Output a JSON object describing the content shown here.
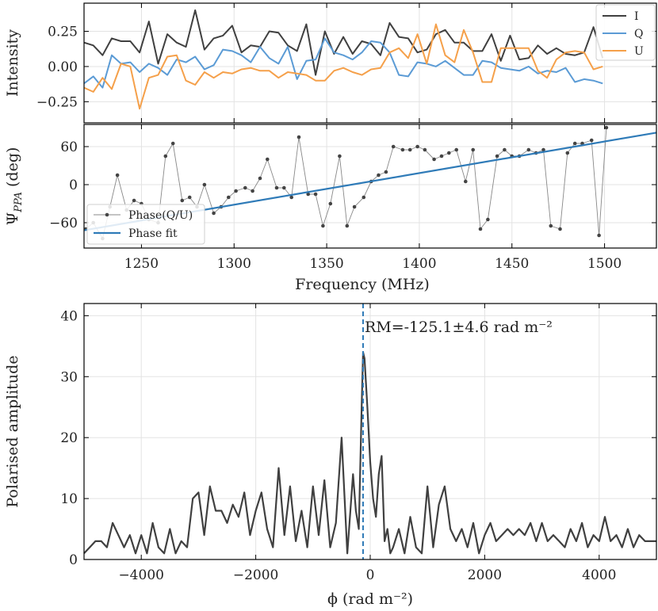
{
  "chart_data": [
    {
      "type": "line",
      "ylabel": "Intensity",
      "xlim": [
        1219,
        1528
      ],
      "ylim": [
        -0.4,
        0.45
      ],
      "yticks": [
        0.25,
        0.0,
        -0.25
      ],
      "ytick_labels": [
        "0.25",
        "0.00",
        "−0.25"
      ],
      "grid": true,
      "legend_position": "top-right",
      "x": [
        1219,
        1224,
        1229,
        1234,
        1239,
        1244,
        1249,
        1254,
        1259,
        1264,
        1269,
        1274,
        1279,
        1284,
        1289,
        1294,
        1299,
        1304,
        1309,
        1314,
        1319,
        1324,
        1329,
        1334,
        1339,
        1344,
        1349,
        1354,
        1359,
        1364,
        1369,
        1374,
        1379,
        1384,
        1389,
        1394,
        1399,
        1404,
        1409,
        1414,
        1419,
        1424,
        1429,
        1434,
        1439,
        1444,
        1449,
        1454,
        1459,
        1464,
        1469,
        1474,
        1479,
        1484,
        1489,
        1494,
        1499
      ],
      "series": [
        {
          "name": "I",
          "color": "#404040",
          "values": [
            0.17,
            0.15,
            0.08,
            0.2,
            0.18,
            0.18,
            0.1,
            0.32,
            0.02,
            0.23,
            0.17,
            0.14,
            0.4,
            0.12,
            0.2,
            0.22,
            0.29,
            0.1,
            0.15,
            0.14,
            0.25,
            0.24,
            0.15,
            0.11,
            0.3,
            -0.06,
            0.25,
            0.09,
            0.21,
            0.09,
            0.18,
            0.16,
            0.08,
            0.31,
            0.21,
            0.2,
            0.1,
            0.12,
            0.23,
            0.26,
            0.17,
            0.17,
            0.11,
            0.11,
            0.23,
            0.04,
            0.22,
            0.05,
            0.06,
            0.15,
            0.09,
            0.13,
            0.09,
            0.08,
            0.1,
            0.28,
            0.06
          ]
        },
        {
          "name": "Q",
          "color": "#5b9bd5",
          "values": [
            -0.12,
            -0.07,
            -0.15,
            0.08,
            0.02,
            0.03,
            -0.04,
            0.02,
            -0.01,
            -0.06,
            0.05,
            0.03,
            0.07,
            -0.02,
            0.01,
            0.12,
            0.11,
            0.08,
            0.03,
            0.14,
            0.06,
            0.02,
            0.14,
            -0.09,
            0.04,
            0.05,
            0.2,
            0.1,
            0.08,
            0.05,
            0.1,
            0.18,
            0.17,
            0.1,
            -0.06,
            -0.07,
            0.03,
            0.02,
            0.0,
            0.04,
            -0.01,
            -0.06,
            -0.06,
            0.04,
            0.03,
            -0.01,
            -0.02,
            -0.03,
            0.0,
            -0.05,
            -0.03,
            -0.04,
            -0.01,
            -0.11,
            -0.09,
            -0.1,
            -0.12
          ]
        },
        {
          "name": "U",
          "color": "#f5a04a",
          "values": [
            -0.15,
            -0.18,
            -0.08,
            -0.16,
            0.02,
            0.0,
            -0.3,
            -0.08,
            -0.06,
            0.07,
            0.08,
            -0.1,
            -0.13,
            -0.04,
            -0.08,
            -0.04,
            -0.05,
            -0.02,
            -0.01,
            -0.03,
            -0.03,
            -0.08,
            -0.04,
            -0.05,
            -0.06,
            -0.1,
            -0.1,
            -0.03,
            -0.01,
            -0.04,
            -0.06,
            -0.02,
            -0.01,
            0.1,
            0.13,
            0.06,
            0.23,
            0.02,
            0.3,
            0.08,
            0.03,
            0.26,
            0.1,
            -0.11,
            -0.11,
            0.13,
            0.13,
            0.13,
            0.13,
            -0.03,
            -0.08,
            0.05,
            0.1,
            0.11,
            0.1,
            -0.02,
            0.0
          ]
        }
      ]
    },
    {
      "type": "line",
      "ylabel": "ΨPPA (deg)",
      "xlim": [
        1219,
        1528
      ],
      "ylim": [
        -100,
        95
      ],
      "yticks": [
        60,
        0,
        -60
      ],
      "ytick_labels": [
        "60",
        "0",
        "−60"
      ],
      "xticks": [
        1250,
        1300,
        1350,
        1400,
        1450,
        1500
      ],
      "xlabel": "Frequency (MHz)",
      "grid": true,
      "legend_position": "bottom-left",
      "series": [
        {
          "name": "Phase(Q/U)",
          "style": "line+markers",
          "color": "#555555",
          "x": [
            1220,
            1224,
            1229,
            1233,
            1237,
            1242,
            1246,
            1250,
            1254,
            1259,
            1263,
            1267,
            1272,
            1276,
            1280,
            1284,
            1289,
            1293,
            1297,
            1301,
            1306,
            1310,
            1314,
            1318,
            1323,
            1327,
            1331,
            1335,
            1340,
            1344,
            1348,
            1352,
            1357,
            1361,
            1365,
            1370,
            1374,
            1378,
            1382,
            1386,
            1391,
            1395,
            1399,
            1403,
            1408,
            1412,
            1416,
            1420,
            1425,
            1429,
            1433,
            1437,
            1442,
            1446,
            1450,
            1454,
            1459,
            1463,
            1467,
            1471,
            1476,
            1480,
            1484,
            1488,
            1493,
            1497,
            1501
          ],
          "values": [
            -70,
            -60,
            -85,
            -35,
            15,
            -40,
            -25,
            -30,
            -55,
            -60,
            45,
            65,
            -25,
            -20,
            -35,
            0,
            -45,
            -35,
            -20,
            -10,
            -5,
            -10,
            10,
            40,
            -5,
            -5,
            -20,
            75,
            -15,
            -15,
            -65,
            -30,
            45,
            -65,
            -35,
            -20,
            5,
            15,
            20,
            60,
            55,
            55,
            60,
            55,
            40,
            45,
            50,
            55,
            5,
            55,
            -70,
            -55,
            45,
            55,
            45,
            45,
            55,
            50,
            55,
            -65,
            -70,
            50,
            65,
            65,
            70,
            -80,
            90
          ]
        },
        {
          "name": "Phase fit",
          "style": "line",
          "color": "#2f7bb8",
          "x": [
            1219,
            1528
          ],
          "values": [
            -72,
            82
          ]
        }
      ]
    },
    {
      "type": "line",
      "ylabel": "Polarised amplitude",
      "xlabel": "ϕ (rad m⁻²)",
      "xlim": [
        -5000,
        5000
      ],
      "ylim": [
        0,
        42
      ],
      "xticks": [
        -4000,
        -2000,
        0,
        2000,
        4000
      ],
      "xtick_labels": [
        "−4000",
        "−2000",
        "0",
        "2000",
        "4000"
      ],
      "yticks": [
        0,
        10,
        20,
        30,
        40
      ],
      "ytick_labels": [
        "0",
        "10",
        "20",
        "30",
        "40"
      ],
      "grid": true,
      "annotation": {
        "text": "RM=-125.1±4.6 rad m⁻²",
        "x": -125.1
      },
      "series": [
        {
          "name": "",
          "color": "#404040",
          "x": [
            -5000,
            -4900,
            -4800,
            -4700,
            -4600,
            -4500,
            -4400,
            -4300,
            -4200,
            -4100,
            -4000,
            -3900,
            -3800,
            -3700,
            -3600,
            -3500,
            -3400,
            -3300,
            -3200,
            -3100,
            -3000,
            -2900,
            -2800,
            -2700,
            -2600,
            -2500,
            -2400,
            -2300,
            -2200,
            -2100,
            -2000,
            -1900,
            -1800,
            -1700,
            -1600,
            -1500,
            -1400,
            -1300,
            -1200,
            -1100,
            -1000,
            -900,
            -800,
            -700,
            -600,
            -500,
            -400,
            -300,
            -250,
            -200,
            -150,
            -125,
            -100,
            -50,
            0,
            50,
            100,
            150,
            200,
            250,
            300,
            350,
            400,
            500,
            600,
            700,
            800,
            900,
            1000,
            1100,
            1200,
            1300,
            1400,
            1500,
            1600,
            1700,
            1800,
            1900,
            2000,
            2100,
            2200,
            2300,
            2400,
            2500,
            2600,
            2700,
            2800,
            2900,
            3000,
            3100,
            3200,
            3300,
            3400,
            3500,
            3600,
            3700,
            3800,
            3900,
            4000,
            4100,
            4200,
            4300,
            4400,
            4500,
            4600,
            4700,
            4800,
            4900,
            5000
          ],
          "values": [
            1,
            2,
            3,
            3,
            2,
            6,
            4,
            2,
            4,
            1,
            4,
            1,
            6,
            2,
            1,
            5,
            1,
            3,
            2,
            10,
            11,
            4,
            12,
            8,
            8,
            6,
            9,
            7,
            11,
            4,
            8,
            11,
            5,
            2,
            15,
            4,
            12,
            3,
            8,
            2,
            12,
            4,
            13,
            2,
            6,
            20,
            1,
            14,
            8,
            5,
            25,
            34,
            33,
            25,
            16,
            10,
            7,
            14,
            17,
            3,
            5,
            1,
            2,
            5,
            1,
            7,
            2,
            1,
            12,
            2,
            9,
            12,
            5,
            3,
            5,
            2,
            6,
            1,
            4,
            6,
            3,
            4,
            5,
            4,
            5,
            4,
            6,
            3,
            6,
            3,
            4,
            3,
            2,
            5,
            3,
            6,
            2,
            4,
            3,
            7,
            3,
            4,
            2,
            5,
            2,
            4,
            3,
            3,
            3
          ]
        }
      ]
    }
  ]
}
